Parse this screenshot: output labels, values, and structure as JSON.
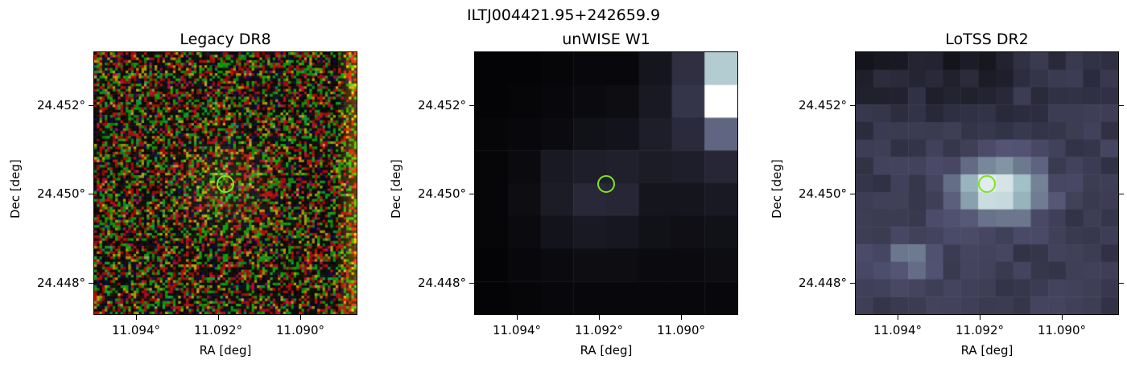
{
  "figure": {
    "title": "ILTJ004421.95+242659.9",
    "source_marker_color": "#7fe51a"
  },
  "panels": [
    {
      "title": "Legacy DR8",
      "colormap": "rgb-noise",
      "xlabel": "RA [deg]",
      "ylabel": "Dec [deg]",
      "xticks": [
        "11.094°",
        "11.092°",
        "11.090°"
      ],
      "yticks": [
        "24.452°",
        "24.450°",
        "24.448°"
      ]
    },
    {
      "title": "unWISE W1",
      "colormap": "bone",
      "xlabel": "RA [deg]",
      "ylabel": "Dec [deg]",
      "xticks": [
        "11.094°",
        "11.092°",
        "11.090°"
      ],
      "yticks": [
        "24.452°",
        "24.450°",
        "24.448°"
      ]
    },
    {
      "title": "LoTSS DR2",
      "colormap": "bone",
      "xlabel": "RA [deg]",
      "ylabel": "Dec [deg]",
      "xticks": [
        "11.094°",
        "11.092°",
        "11.090°"
      ],
      "yticks": [
        "24.452°",
        "24.450°",
        "24.448°"
      ]
    }
  ]
}
